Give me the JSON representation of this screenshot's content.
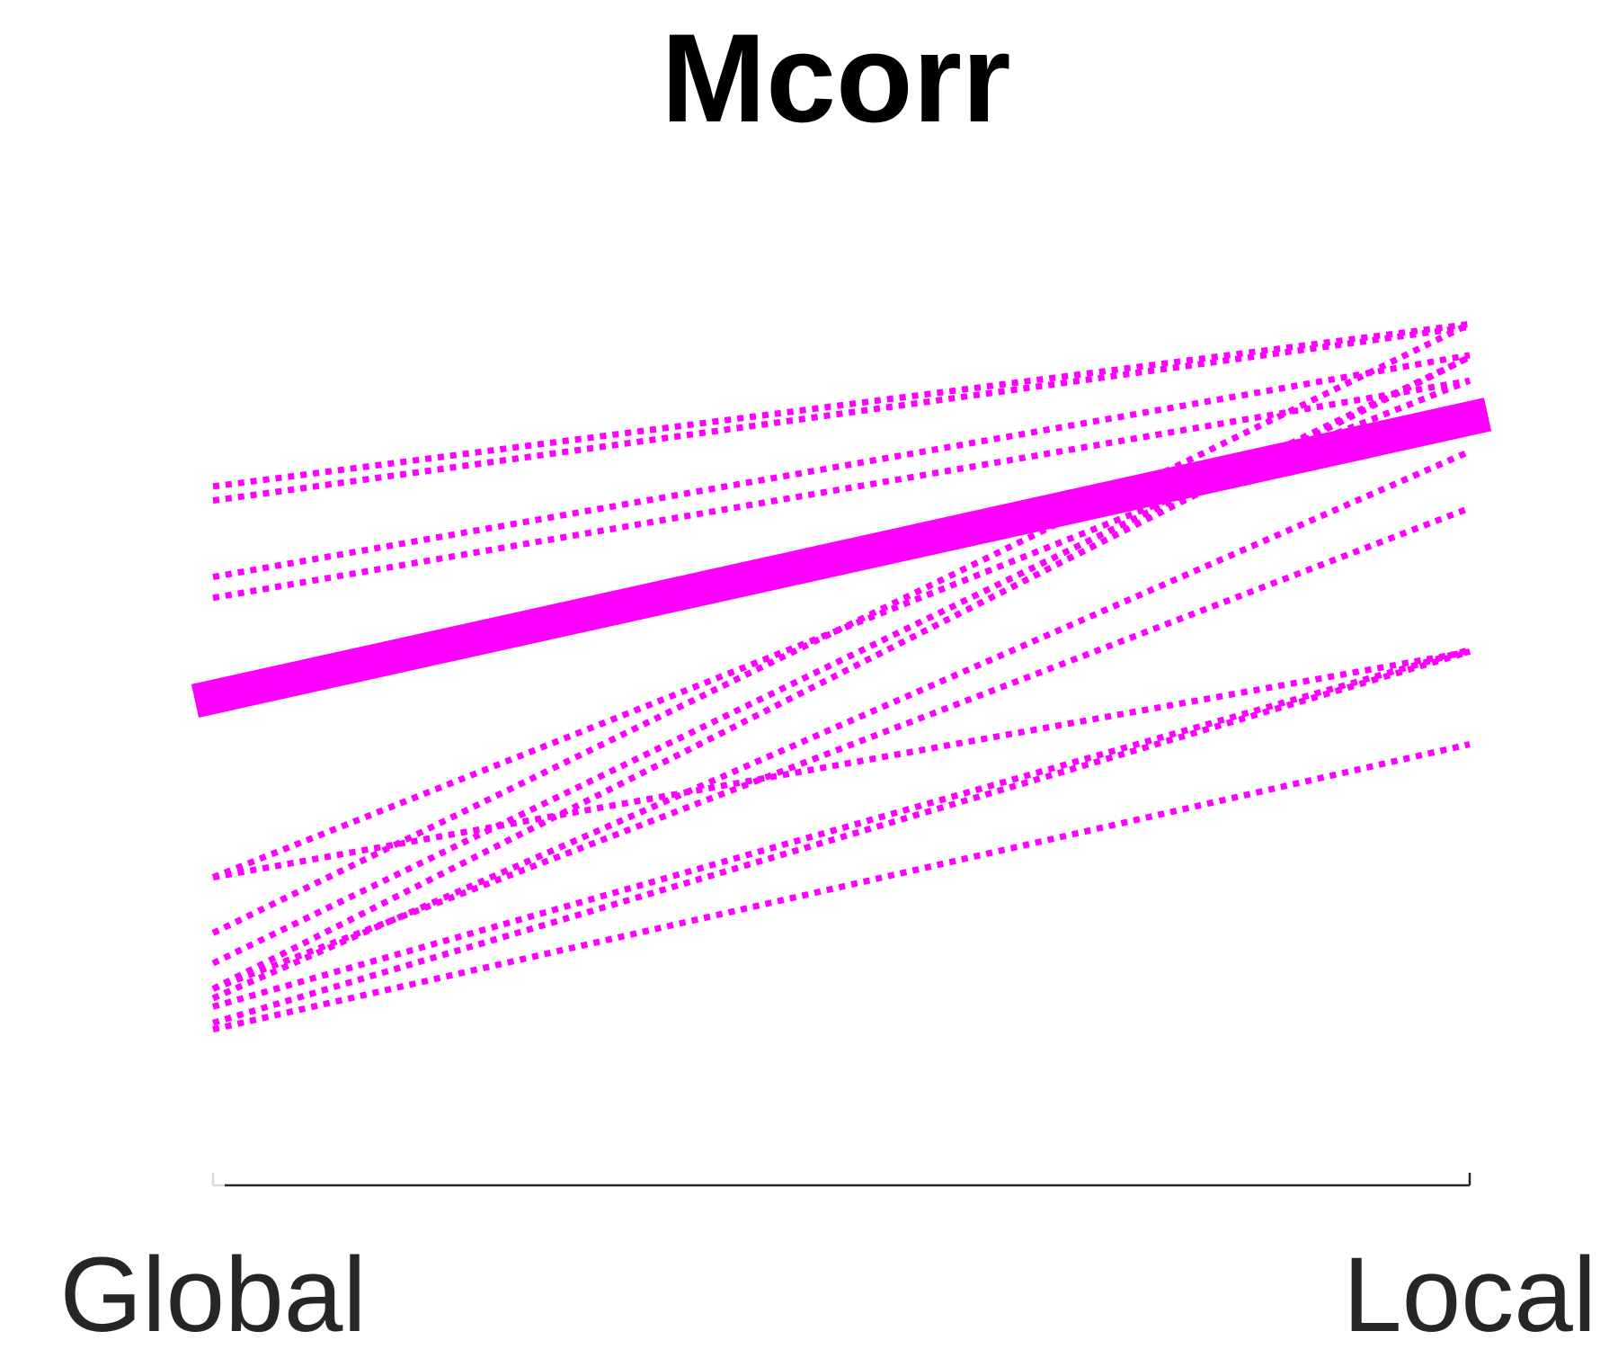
{
  "chart_data": {
    "type": "line",
    "title": "Mcorr",
    "xlabel": "",
    "ylabel": "",
    "categories": [
      "Global",
      "Local"
    ],
    "ylim": [
      0,
      1
    ],
    "grid": false,
    "legend": "none",
    "colors": {
      "series": "#ff00ff",
      "axis": "#262626",
      "title": "#000000"
    },
    "series": [
      {
        "values": [
          0.723,
          0.895
        ],
        "style": "dotted"
      },
      {
        "values": [
          0.708,
          0.892
        ],
        "style": "dotted"
      },
      {
        "values": [
          0.627,
          0.862
        ],
        "style": "dotted"
      },
      {
        "values": [
          0.605,
          0.835
        ],
        "style": "dotted"
      },
      {
        "values": [
          0.309,
          0.835
        ],
        "style": "dotted"
      },
      {
        "values": [
          0.25,
          0.895
        ],
        "style": "dotted"
      },
      {
        "values": [
          0.218,
          0.86
        ],
        "style": "dotted"
      },
      {
        "values": [
          0.191,
          0.86
        ],
        "style": "dotted"
      },
      {
        "values": [
          0.181,
          0.76
        ],
        "style": "dotted"
      },
      {
        "values": [
          0.191,
          0.7
        ],
        "style": "dotted"
      },
      {
        "values": [
          0.172,
          0.55
        ],
        "style": "dotted"
      },
      {
        "values": [
          0.155,
          0.548
        ],
        "style": "dotted"
      },
      {
        "values": [
          0.148,
          0.45
        ],
        "style": "dotted"
      },
      {
        "values": [
          0.309,
          0.548
        ],
        "style": "dotted"
      },
      {
        "values": [
          0.5,
          0.795
        ],
        "style": "mean"
      }
    ]
  }
}
